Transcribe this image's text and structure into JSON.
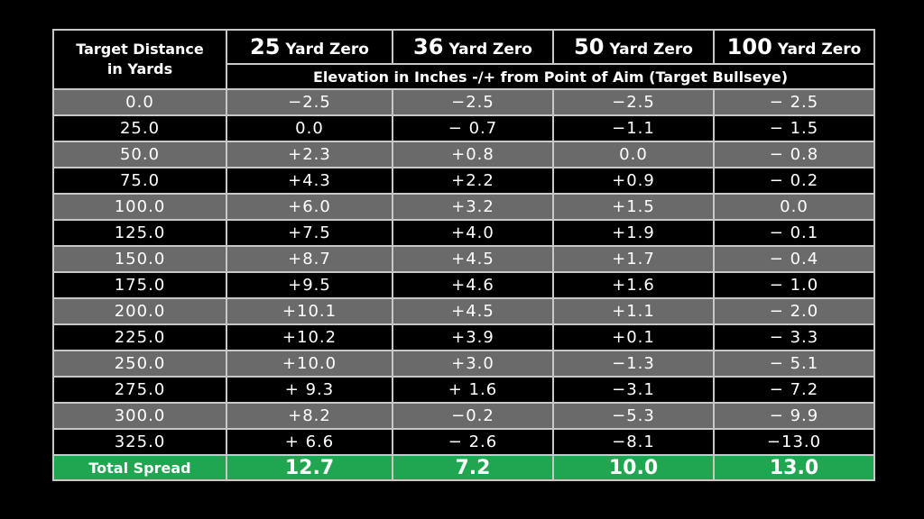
{
  "chart_data": {
    "type": "table",
    "header": {
      "distance_label_line1": "Target Distance",
      "distance_label_line2": "in Yards",
      "zero_columns": [
        {
          "number": "25",
          "suffix": " Yard Zero"
        },
        {
          "number": "36",
          "suffix": " Yard Zero"
        },
        {
          "number": "50",
          "suffix": " Yard Zero"
        },
        {
          "number": "100",
          "suffix": " Yard Zero"
        }
      ],
      "subheader": "Elevation in Inches -/+ from Point of Aim (Target Bullseye)"
    },
    "rows": [
      {
        "distance": "0.0",
        "values": [
          "−2.5",
          "−2.5",
          "−2.5",
          "− 2.5"
        ]
      },
      {
        "distance": "25.0",
        "values": [
          "0.0",
          "− 0.7",
          "−1.1",
          "− 1.5"
        ]
      },
      {
        "distance": "50.0",
        "values": [
          "+2.3",
          "+0.8",
          "0.0",
          "− 0.8"
        ]
      },
      {
        "distance": "75.0",
        "values": [
          "+4.3",
          "+2.2",
          "+0.9",
          "− 0.2"
        ]
      },
      {
        "distance": "100.0",
        "values": [
          "+6.0",
          "+3.2",
          "+1.5",
          "0.0"
        ]
      },
      {
        "distance": "125.0",
        "values": [
          "+7.5",
          "+4.0",
          "+1.9",
          "− 0.1"
        ]
      },
      {
        "distance": "150.0",
        "values": [
          "+8.7",
          "+4.5",
          "+1.7",
          "− 0.4"
        ]
      },
      {
        "distance": "175.0",
        "values": [
          "+9.5",
          "+4.6",
          "+1.6",
          "− 1.0"
        ]
      },
      {
        "distance": "200.0",
        "values": [
          "+10.1",
          "+4.5",
          "+1.1",
          "− 2.0"
        ]
      },
      {
        "distance": "225.0",
        "values": [
          "+10.2",
          "+3.9",
          "+0.1",
          "− 3.3"
        ]
      },
      {
        "distance": "250.0",
        "values": [
          "+10.0",
          "+3.0",
          "−1.3",
          "− 5.1"
        ]
      },
      {
        "distance": "275.0",
        "values": [
          "+ 9.3",
          "+ 1.6",
          "−3.1",
          "− 7.2"
        ]
      },
      {
        "distance": "300.0",
        "values": [
          "+8.2",
          "−0.2",
          "−5.3",
          "− 9.9"
        ]
      },
      {
        "distance": "325.0",
        "values": [
          "+ 6.6",
          "− 2.6",
          "−8.1",
          "−13.0"
        ]
      }
    ],
    "total": {
      "label": "Total Spread",
      "values": [
        "12.7",
        "7.2",
        "10.0",
        "13.0"
      ]
    },
    "colors": {
      "background": "#000000",
      "row_gray": "#6a6a6a",
      "row_black": "#000000",
      "total_green": "#20a650",
      "grid": "#c8c8c8",
      "text": "#ffffff"
    }
  }
}
